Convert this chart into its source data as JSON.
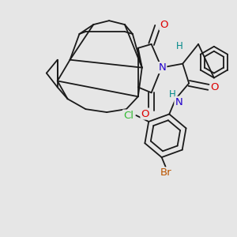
{
  "background_color": "#e6e6e6",
  "bond_color": "#1a1a1a",
  "bond_width": 1.3,
  "atom_bg": "#e6e6e6",
  "colors": {
    "O": "#dd0000",
    "N": "#2200cc",
    "H": "#008888",
    "Cl": "#33bb33",
    "Br": "#bb5500",
    "C": "#1a1a1a"
  },
  "font_size_atom": 9.5,
  "font_size_H": 8.5
}
